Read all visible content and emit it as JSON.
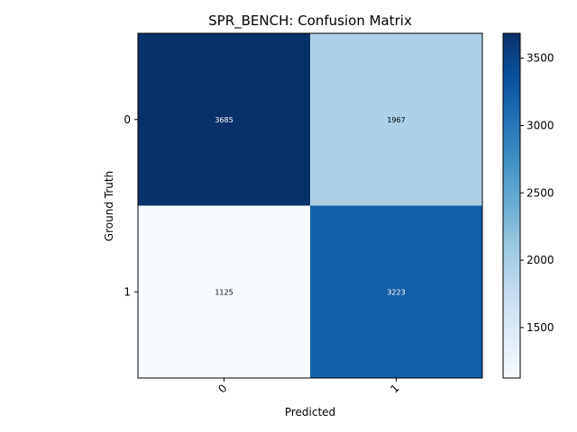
{
  "chart_data": {
    "type": "heatmap",
    "title": "SPR_BENCH: Confusion Matrix",
    "xlabel": "Predicted",
    "ylabel": "Ground Truth",
    "x_categories": [
      "0",
      "1"
    ],
    "y_categories": [
      "0",
      "1"
    ],
    "matrix": [
      [
        3685,
        1967
      ],
      [
        1125,
        3223
      ]
    ],
    "colormap": "Blues",
    "colorbar": {
      "min": 1125,
      "max": 3685,
      "ticks": [
        1500,
        2000,
        2500,
        3000,
        3500
      ]
    },
    "x_tick_rotation_deg": 45,
    "grid": false,
    "legend": "colorbar-right"
  }
}
